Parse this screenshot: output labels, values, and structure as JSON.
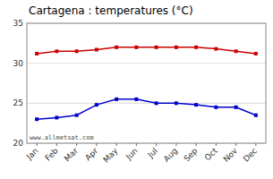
{
  "chart_data": {
    "type": "line",
    "title": "Cartagena : temperatures (°C)",
    "categories": [
      "Jan",
      "Feb",
      "Mar",
      "Apr",
      "May",
      "Jun",
      "Jul",
      "Aug",
      "Sep",
      "Oct",
      "Nov",
      "Dec"
    ],
    "series": [
      {
        "color": "#cc0000",
        "values": [
          31.2,
          31.5,
          31.5,
          31.7,
          32.0,
          32.0,
          32.0,
          32.0,
          32.0,
          31.8,
          31.5,
          31.2
        ]
      },
      {
        "color": "#0000cc",
        "values": [
          23.0,
          23.2,
          23.5,
          24.8,
          25.5,
          25.5,
          25.0,
          25.0,
          24.8,
          24.5,
          24.5,
          23.5
        ]
      }
    ],
    "ylim": [
      20,
      35
    ],
    "yticks": [
      20,
      25,
      30,
      35
    ],
    "grid": true,
    "marker": "square",
    "annotations": [
      "www.allmetsat.com"
    ]
  }
}
